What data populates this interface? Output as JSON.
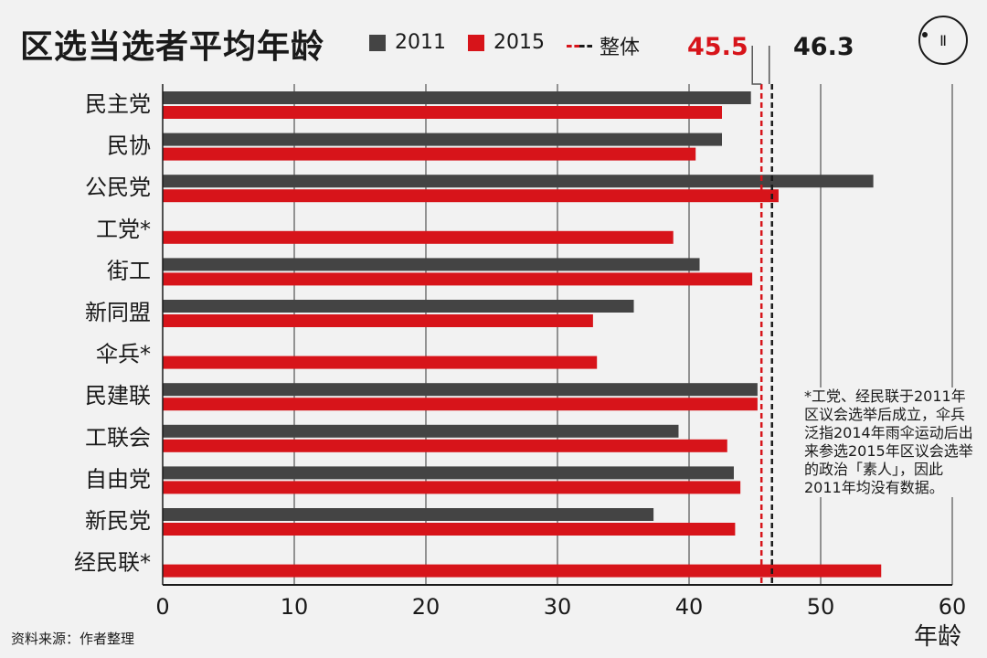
{
  "title": "区选当选者平均年龄",
  "legend": {
    "items": [
      {
        "label": "2011",
        "color": "#444444"
      },
      {
        "label": "2015",
        "color": "#d7141a"
      }
    ],
    "overall_label": "整体"
  },
  "overall": {
    "v2015": {
      "label": "45.5",
      "value": 45.5,
      "color": "#d7141a"
    },
    "v2011": {
      "label": "46.3",
      "value": 46.3,
      "color": "#1a1a1a"
    }
  },
  "footnote": "*工党、经民联于2011年区议会选举后成立，伞兵泛指2014年雨伞运动后出来参选2015年区议会选举的政治「素人」，因此2011年均没有数据。",
  "source": "资料来源：作者整理",
  "unit": "年龄",
  "logo_icon": "initium-logo-icon",
  "chart_data": {
    "type": "bar",
    "orientation": "horizontal",
    "categories": [
      "民主党",
      "民协",
      "公民党",
      "工党*",
      "街工",
      "新同盟",
      "伞兵*",
      "民建联",
      "工联会",
      "自由党",
      "新民党",
      "经民联*"
    ],
    "series": [
      {
        "name": "2011",
        "color": "#444444",
        "values": [
          44.7,
          42.5,
          54.0,
          null,
          40.8,
          35.8,
          null,
          45.2,
          39.2,
          43.4,
          37.3,
          null
        ]
      },
      {
        "name": "2015",
        "color": "#d7141a",
        "values": [
          42.5,
          40.5,
          46.8,
          38.8,
          44.8,
          32.7,
          33.0,
          45.2,
          42.9,
          43.9,
          43.5,
          54.6
        ]
      }
    ],
    "xlim": [
      0,
      60
    ],
    "xticks": [
      "0",
      "10",
      "20",
      "30",
      "40",
      "50",
      "60"
    ],
    "xlabel": "年龄",
    "grid": true,
    "reference_lines": [
      {
        "label": "45.5",
        "value": 45.5,
        "color": "#d7141a",
        "style": "dashed"
      },
      {
        "label": "46.3",
        "value": 46.3,
        "color": "#1a1a1a",
        "style": "dashed"
      }
    ]
  }
}
